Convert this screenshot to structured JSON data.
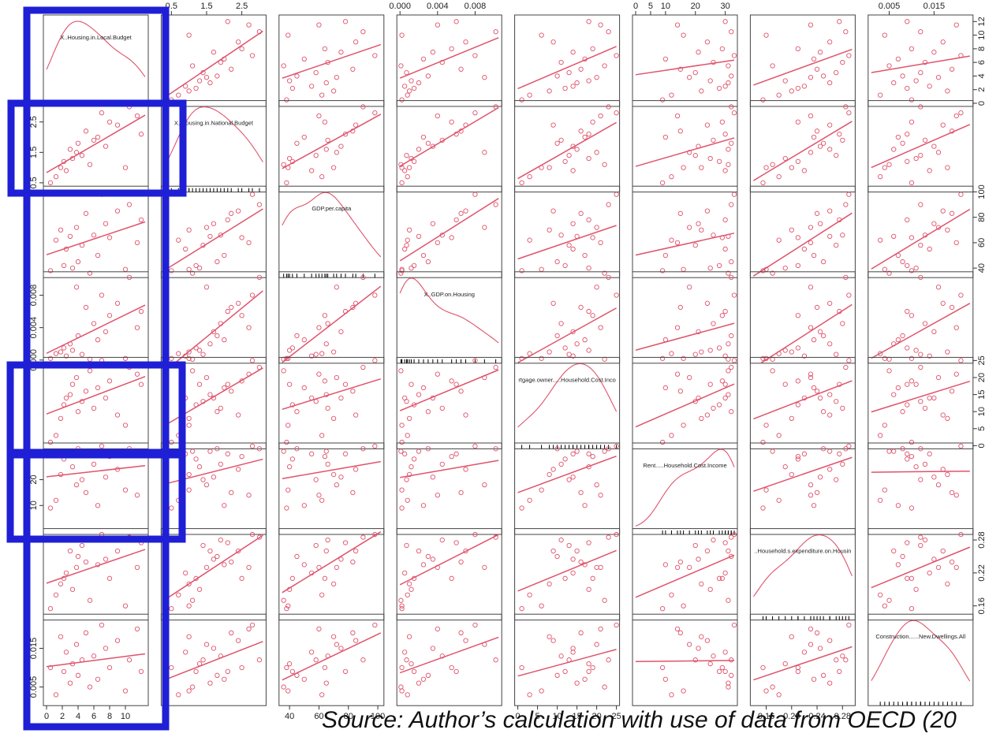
{
  "source_text": "Source: Author’s calculation with use of data from OECD (20",
  "highlight_color": "#1f1fd6",
  "series_color": "#df536b",
  "chart_data": {
    "type": "scatter",
    "plot_kind": "scatterplot-matrix",
    "variables": [
      "X..Housing.in.Local.Budget",
      "X..Housing.in.National.Budget",
      "GDP.per.capita",
      "X..GDP.on.Housing",
      "Mortgage.owner.....Household.Cost.Income",
      "Rent.....Household.Cost.Income",
      "X..Household.s.expenditure.on.Housing",
      "Construction......New.Dwellings.All"
    ],
    "diagonal_labels": [
      "X..Housing.in.Local.Budget",
      "X..Housing.in.National.Budget",
      "GDP.per.capita",
      "X..GDP.on.Housing",
      "rtgage.owner.....Household.Cost.Inco",
      "Rent.....Household.Cost.Income",
      "..Household.s.expenditure.on.Housin",
      "Construction......New.Dwellings.All"
    ],
    "ranges": [
      [
        0,
        12.5
      ],
      [
        0.3,
        3.1
      ],
      [
        35,
        102
      ],
      [
        0,
        0.0105
      ],
      [
        0,
        25
      ],
      [
        0,
        33
      ],
      [
        0.14,
        0.295
      ],
      [
        0.001,
        0.023
      ]
    ],
    "ticks": [
      [
        0,
        2,
        4,
        6,
        8,
        10
      ],
      [
        0.5,
        1.5,
        2.5
      ],
      [
        40,
        60,
        80,
        100
      ],
      [
        0.0,
        0.004,
        0.008
      ],
      [
        0,
        5,
        10,
        15,
        20,
        25
      ],
      [
        0,
        5,
        10,
        20,
        30
      ],
      [
        0.16,
        0.2,
        0.24,
        0.28
      ],
      [
        0.005,
        0.015
      ]
    ],
    "tick_labels": [
      [
        "0",
        "2",
        "4",
        "6",
        "8",
        "10"
      ],
      [
        "0.5",
        "1.5",
        "2.5"
      ],
      [
        "40",
        "60",
        "80",
        "100"
      ],
      [
        "0.000",
        "0.004",
        "0.008"
      ],
      [
        "0",
        "5",
        "10",
        "15",
        "20",
        "25"
      ],
      [
        "0",
        "5",
        "10",
        "20",
        "30"
      ],
      [
        "0.16",
        "0.20",
        "0.24",
        "0.28"
      ],
      [
        "0.005",
        "0.015"
      ]
    ],
    "right_axis_ticks": [
      [
        0,
        2,
        4,
        6,
        8,
        10,
        12
      ],
      null,
      [
        40,
        60,
        80,
        100
      ],
      null,
      [
        0,
        5,
        10,
        15,
        20,
        25
      ],
      null,
      [
        0.16,
        0.22,
        0.28
      ],
      null
    ],
    "right_axis_labels": [
      [
        "0",
        "2",
        "4",
        "6",
        "8",
        "10",
        "12"
      ],
      null,
      [
        "40",
        "60",
        "80",
        "100"
      ],
      null,
      [
        "0",
        "5",
        "10",
        "15",
        "20",
        "25"
      ],
      null,
      [
        "0.16",
        "0.22",
        "0.28"
      ],
      null
    ],
    "left_axis_ticks": [
      null,
      [
        0.5,
        1.5,
        2.5
      ],
      null,
      [
        0.0,
        0.004,
        0.008
      ],
      null,
      [
        10,
        20,
        30
      ],
      null,
      [
        0.005,
        0.015
      ]
    ],
    "left_axis_labels": [
      null,
      [
        "0.5",
        "1.5",
        "2.5"
      ],
      null,
      [
        "0.000",
        "0.004",
        "0.008"
      ],
      null,
      [
        "10",
        "20",
        "30"
      ],
      null,
      [
        "0.005",
        "0.015"
      ]
    ],
    "observations": [
      [
        0.5,
        0.5,
        38,
        0.0002,
        1,
        9,
        0.155,
        0.01
      ],
      [
        1.2,
        0.7,
        62,
        0.0008,
        3,
        12,
        0.18,
        0.003
      ],
      [
        1.8,
        1.0,
        70,
        0.001,
        8,
        22,
        0.2,
        0.018
      ],
      [
        2.2,
        1.2,
        42,
        0.0015,
        12,
        28,
        0.21,
        0.009
      ],
      [
        2.5,
        0.9,
        55,
        0.0005,
        14,
        30,
        0.22,
        0.014
      ],
      [
        3.0,
        1.6,
        65,
        0.002,
        15,
        31,
        0.26,
        0.006
      ],
      [
        3.3,
        1.3,
        40,
        0.0012,
        18,
        25,
        0.19,
        0.011
      ],
      [
        3.8,
        1.5,
        72,
        0.009,
        20,
        18,
        0.23,
        0.016
      ],
      [
        4.0,
        1.8,
        45,
        0.003,
        10,
        32,
        0.25,
        0.008
      ],
      [
        4.5,
        1.4,
        58,
        0.0007,
        13,
        20,
        0.27,
        0.012
      ],
      [
        5.0,
        2.2,
        83,
        0.0065,
        16,
        15,
        0.24,
        0.019
      ],
      [
        5.5,
        1.1,
        36,
        0.0001,
        22,
        31,
        0.17,
        0.005
      ],
      [
        6.0,
        1.9,
        66,
        0.0045,
        11,
        26,
        0.28,
        0.013
      ],
      [
        6.5,
        2.0,
        50,
        0.0025,
        17,
        10,
        0.235,
        0.007
      ],
      [
        7.0,
        2.8,
        98,
        0.008,
        25,
        33,
        0.29,
        0.021
      ],
      [
        7.5,
        1.7,
        75,
        0.0035,
        14,
        21,
        0.245,
        0.015
      ],
      [
        8.0,
        2.5,
        64,
        0.0055,
        19,
        29,
        0.21,
        0.01
      ],
      [
        9.0,
        2.4,
        85,
        0.007,
        9,
        24,
        0.26,
        0.017
      ],
      [
        10.0,
        1.0,
        39,
        0.0002,
        6,
        16,
        0.16,
        0.004
      ],
      [
        10.5,
        3.0,
        90,
        0.0102,
        23,
        32,
        0.285,
        0.012
      ],
      [
        11.5,
        2.7,
        60,
        0.004,
        21,
        14,
        0.23,
        0.02
      ],
      [
        12.0,
        2.1,
        78,
        0.006,
        18,
        30,
        0.275,
        0.009
      ]
    ]
  }
}
